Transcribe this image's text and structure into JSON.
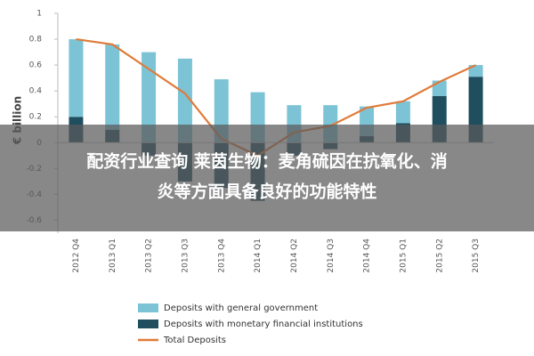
{
  "chart_data": {
    "type": "stacked_bar_line",
    "y_label": "€ billion",
    "categories": [
      "2012 Q4",
      "2013 Q1",
      "2013 Q2",
      "2013 Q3",
      "2013 Q4",
      "2014 Q1",
      "2014 Q2",
      "2014 Q3",
      "2014 Q4",
      "2015 Q1",
      "2015 Q2",
      "2015 Q3"
    ],
    "series": [
      {
        "name": "Deposits with general government",
        "color": "#7cc3d6",
        "kind": "bar",
        "values": [
          0.6,
          0.66,
          0.7,
          0.65,
          0.49,
          0.39,
          0.29,
          0.29,
          0.23,
          0.17,
          0.12,
          0.09
        ]
      },
      {
        "name": "Deposits with monetary financial institutions",
        "color": "#1f4e5f",
        "kind": "bar",
        "values": [
          0.2,
          0.1,
          -0.1,
          -0.3,
          -0.35,
          -0.45,
          -0.1,
          -0.05,
          0.05,
          0.15,
          0.36,
          0.51
        ]
      },
      {
        "name": "Total Deposits",
        "color": "#e07b39",
        "kind": "line",
        "values": [
          0.8,
          0.76,
          0.57,
          0.38,
          0.03,
          -0.1,
          0.08,
          0.13,
          0.27,
          0.32,
          0.47,
          0.6
        ]
      }
    ],
    "ylim": [
      -0.7,
      1
    ],
    "yticks": [
      1,
      0.8,
      0.6,
      0.4,
      0.2,
      0,
      -0.2,
      -0.4,
      -0.6
    ],
    "grid": false
  },
  "overlay": {
    "lines": [
      "配资行业查询 莱茵生物：麦角硫因在抗氧化、消",
      "炎等方面具备良好的功能特性"
    ]
  }
}
